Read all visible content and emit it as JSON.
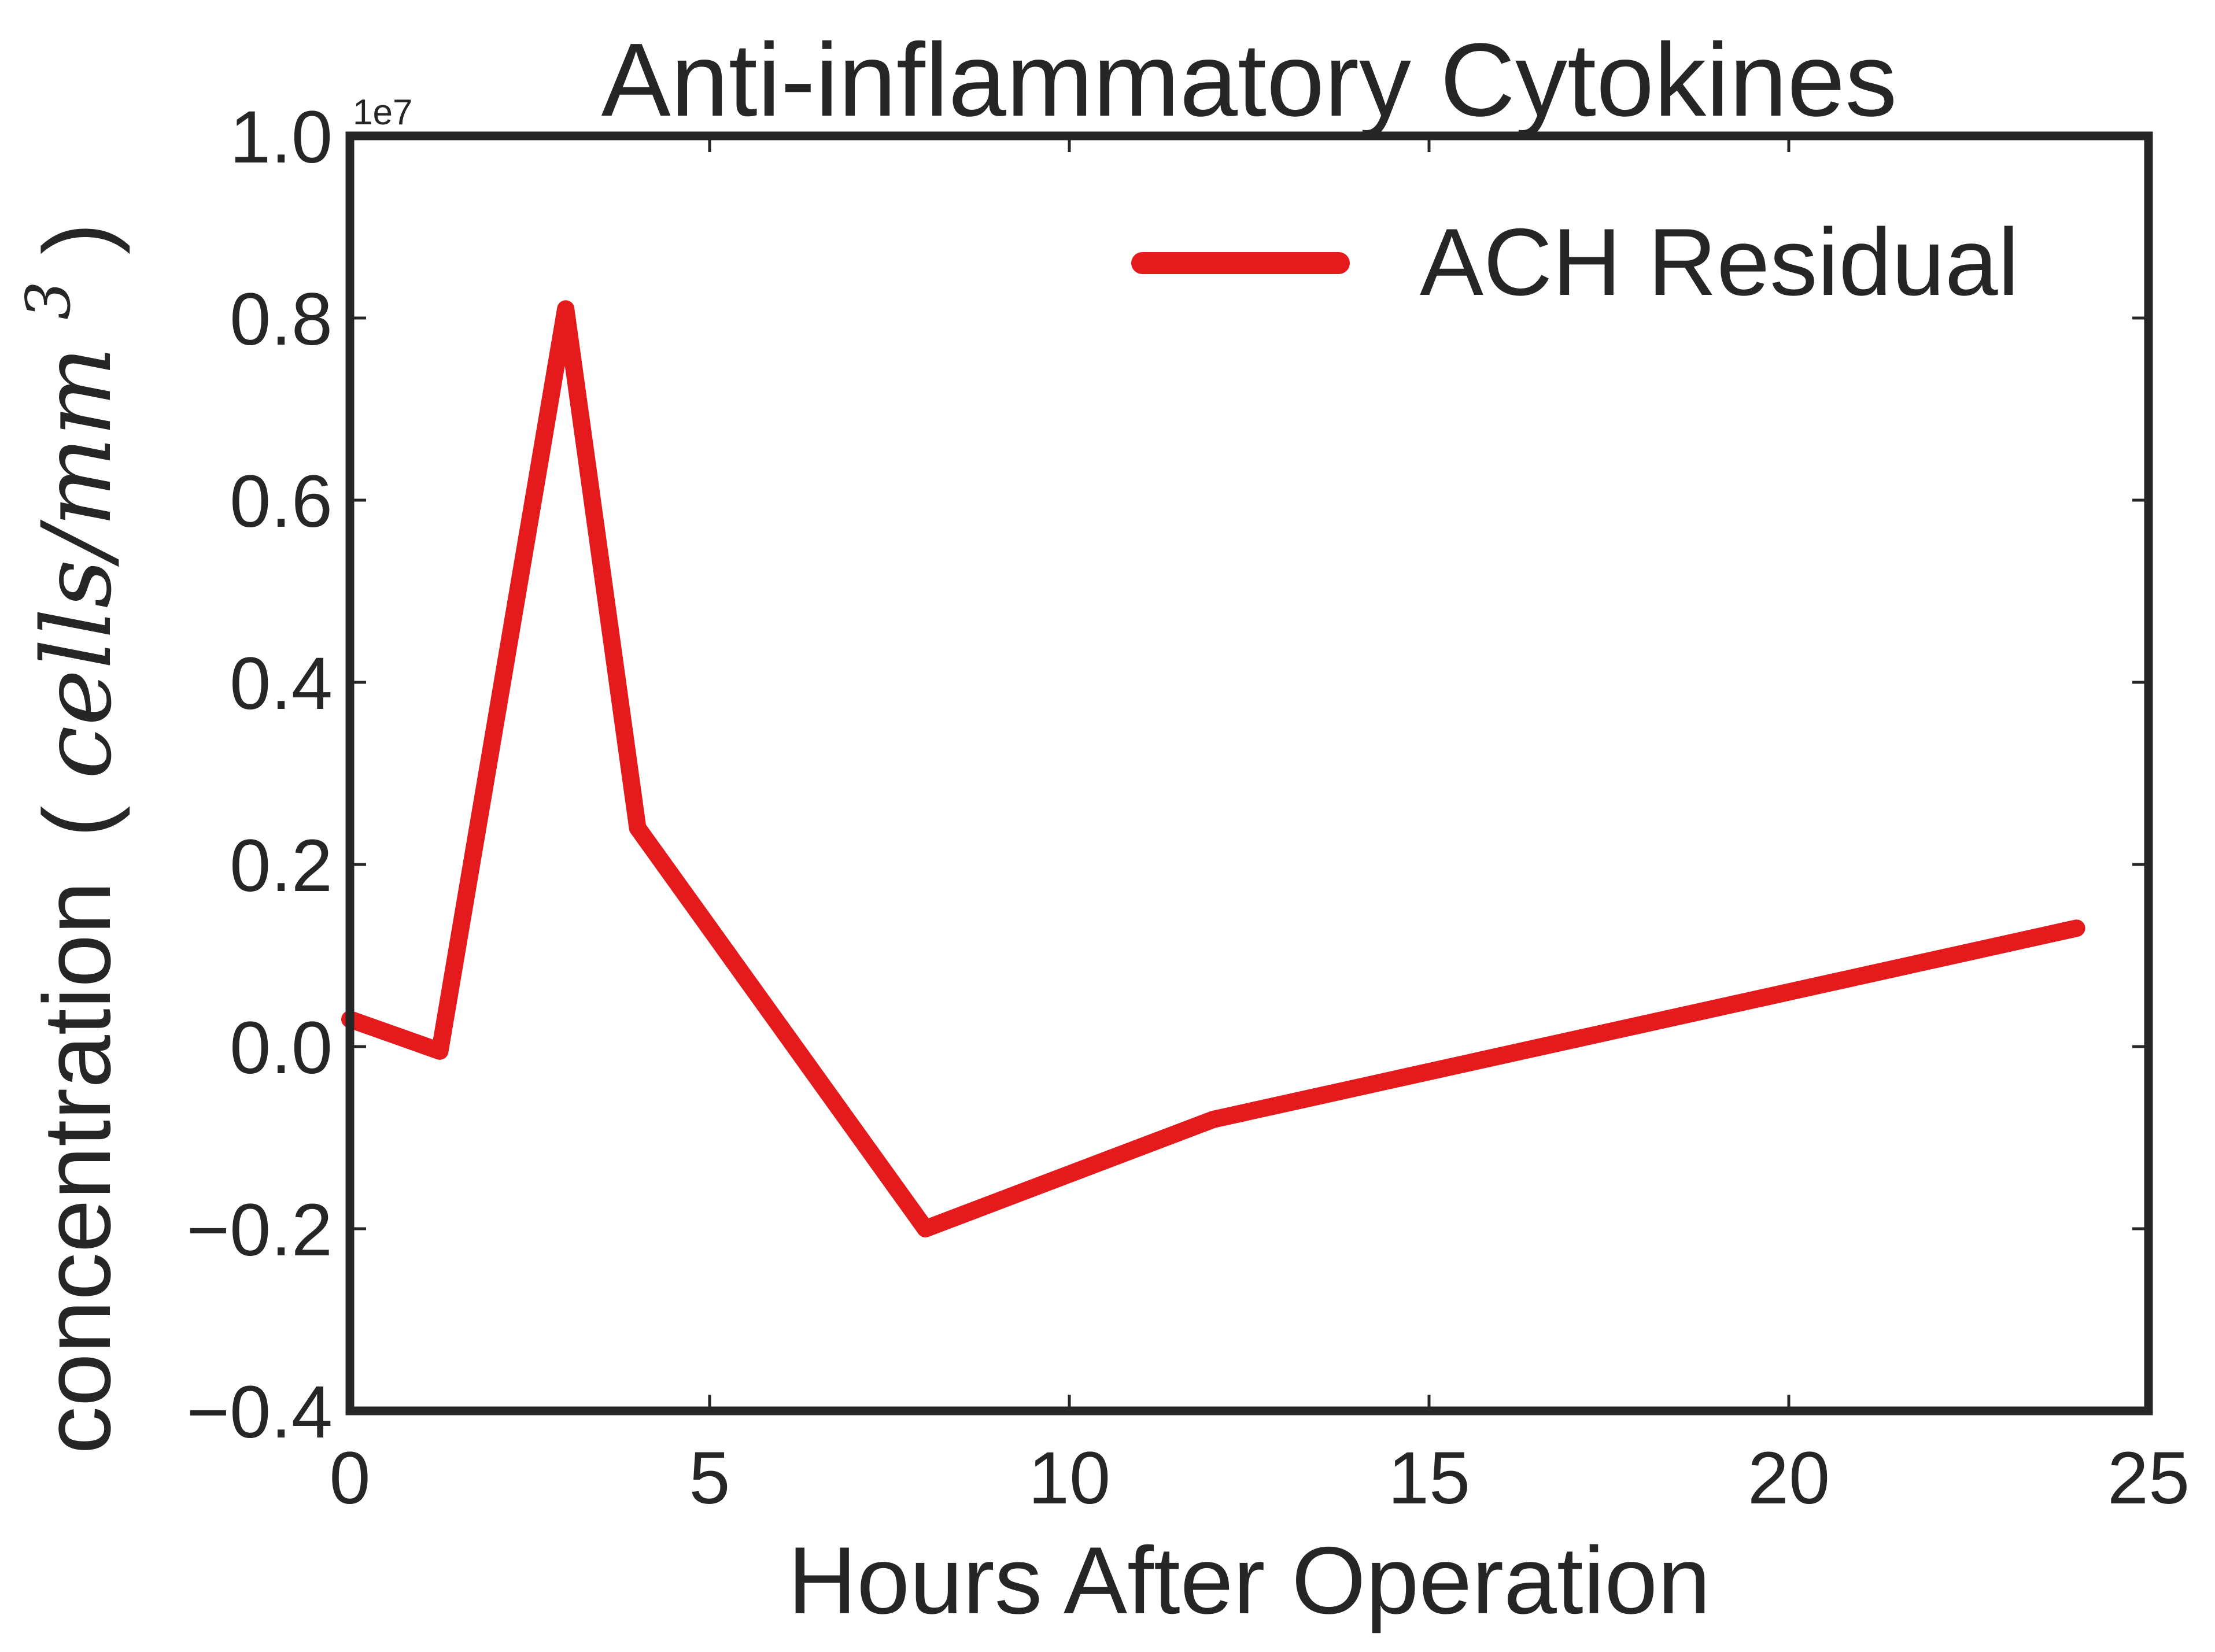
{
  "chart_data": {
    "type": "line",
    "title": "Anti-inflammatory Cytokines",
    "xlabel": "Hours After Operation",
    "ylabel_prefix": "concentration",
    "ylabel_open": "(",
    "ylabel_math_main": "cells/mm",
    "ylabel_math_sup": "3",
    "ylabel_close": ")",
    "offset_label": "1e7",
    "xlim": [
      0,
      25
    ],
    "ylim": [
      -0.4,
      1.0
    ],
    "grid": false,
    "legend_position": "top-right",
    "x_ticks": [
      0,
      5,
      10,
      15,
      20,
      25
    ],
    "x_tick_labels": [
      "0",
      "5",
      "10",
      "15",
      "20",
      "25"
    ],
    "y_ticks": [
      -0.4,
      -0.2,
      0.0,
      0.2,
      0.4,
      0.6,
      0.8,
      1.0
    ],
    "y_tick_labels": [
      "−0.4",
      "−0.2",
      "0.0",
      "0.2",
      "0.4",
      "0.6",
      "0.8",
      "1.0"
    ],
    "series": [
      {
        "name": "ACH Residual",
        "color": "#e41a1c",
        "x": [
          0,
          1.25,
          3,
          4,
          8,
          12,
          24
        ],
        "y": [
          0.03,
          -0.005,
          0.81,
          0.24,
          -0.2,
          -0.08,
          0.13
        ]
      }
    ]
  }
}
